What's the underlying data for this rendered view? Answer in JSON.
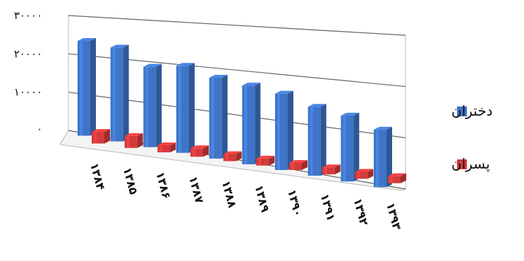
{
  "chart_data": {
    "type": "bar",
    "categories": [
      "۱۳۸۴",
      "۱۳۸۵",
      "۱۳۸۶",
      "۱۳۸۷",
      "۱۳۸۸",
      "۱۳۸۹",
      "۱۳۹۰",
      "۱۳۹۱",
      "۱۳۹۲",
      "۱۳۹۳"
    ],
    "series": [
      {
        "name": "دختران",
        "color": "#3f74c7",
        "values": [
          24500,
          23500,
          19500,
          20500,
          18500,
          17500,
          16500,
          14500,
          13500,
          11500
        ]
      },
      {
        "name": "پسران",
        "color": "#d43a3a",
        "values": [
          3000,
          3000,
          1500,
          2000,
          1500,
          1500,
          1200,
          1000,
          900,
          800
        ]
      }
    ],
    "ylim": [
      0,
      30000
    ],
    "yticks": [
      0,
      10000,
      20000,
      30000
    ],
    "ytick_labels": [
      "۰",
      "۱۰۰۰۰",
      "۲۰۰۰۰",
      "۳۰۰۰۰"
    ],
    "grid": true,
    "legend_position": "right",
    "perspective": "3d"
  }
}
